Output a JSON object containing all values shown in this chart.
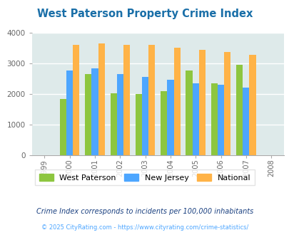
{
  "title": "West Paterson Property Crime Index",
  "all_years": [
    "1999",
    "2000",
    "2001",
    "2002",
    "2003",
    "2004",
    "2005",
    "2006",
    "2007",
    "2008"
  ],
  "bar_years": [
    2000,
    2001,
    2002,
    2003,
    2004,
    2005,
    2006,
    2007
  ],
  "west_paterson": [
    1830,
    2650,
    2020,
    2000,
    2090,
    2760,
    2340,
    2960
  ],
  "new_jersey": [
    2780,
    2840,
    2650,
    2570,
    2460,
    2360,
    2310,
    2200
  ],
  "national": [
    3620,
    3650,
    3620,
    3600,
    3510,
    3440,
    3370,
    3290
  ],
  "bar_color_wp": "#8dc63f",
  "bar_color_nj": "#4da6ff",
  "bar_color_nat": "#ffb347",
  "bg_color": "#deeaea",
  "title_color": "#1a6fa8",
  "ylim": [
    0,
    4000
  ],
  "yticks": [
    0,
    1000,
    2000,
    3000,
    4000
  ],
  "legend_labels": [
    "West Paterson",
    "New Jersey",
    "National"
  ],
  "footnote1": "Crime Index corresponds to incidents per 100,000 inhabitants",
  "footnote2": "© 2025 CityRating.com - https://www.cityrating.com/crime-statistics/",
  "footnote1_color": "#1a4080",
  "footnote2_color": "#4da6ff"
}
